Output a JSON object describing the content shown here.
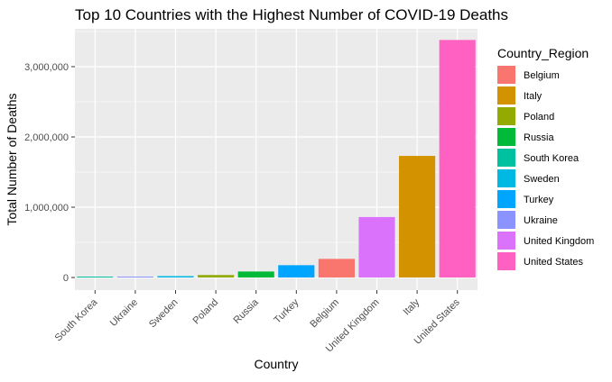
{
  "chart_data": {
    "type": "bar",
    "title": "Top 10 Countries with the Highest Number of COVID-19 Deaths",
    "xlabel": "Country",
    "ylabel": "Total Number of Deaths",
    "categories": [
      "South Korea",
      "Ukraine",
      "Sweden",
      "Poland",
      "Russia",
      "Turkey",
      "Belgium",
      "United Kingdom",
      "Italy",
      "United States"
    ],
    "values": [
      5000,
      7000,
      20000,
      35000,
      85000,
      175000,
      265000,
      860000,
      1730000,
      3380000
    ],
    "ylim": [
      0,
      3500000
    ],
    "yticks": [
      0,
      1000000,
      2000000,
      3000000
    ],
    "ytick_labels": [
      "0",
      "1,000,000",
      "2,000,000",
      "3,000,000"
    ],
    "grid": true,
    "legend": {
      "title": "Country_Region",
      "placement": "right",
      "entries": [
        "Belgium",
        "Italy",
        "Poland",
        "Russia",
        "South Korea",
        "Sweden",
        "Turkey",
        "Ukraine",
        "United Kingdom",
        "United States"
      ]
    },
    "colors": {
      "Belgium": "#F8766D",
      "Italy": "#D39200",
      "Poland": "#93AA00",
      "Russia": "#00BA38",
      "South Korea": "#00C19F",
      "Sweden": "#00B9E3",
      "Turkey": "#00A5FF",
      "Ukraine": "#8B93FF",
      "United Kingdom": "#DB72FB",
      "United States": "#FF61C3"
    },
    "panel_background": "#EBEBEB",
    "grid_color": "#FFFFFF"
  }
}
